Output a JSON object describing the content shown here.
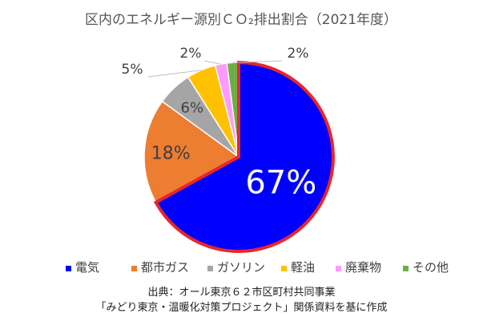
{
  "chart_data": {
    "type": "pie",
    "title": "区内のエネルギー源別ＣＯ₂排出割合（2021年度）",
    "slices": [
      {
        "label": "電気",
        "value": 67,
        "display": "67%",
        "color": "#0000FF"
      },
      {
        "label": "都市ガス",
        "value": 18,
        "display": "18%",
        "color": "#ED7D31"
      },
      {
        "label": "ガソリン",
        "value": 6,
        "display": "6%",
        "color": "#A5A5A5"
      },
      {
        "label": "軽油",
        "value": 5,
        "display": "5%",
        "color": "#FFC000"
      },
      {
        "label": "廃棄物",
        "value": 2,
        "display": "2%",
        "color": "#FF99FF"
      },
      {
        "label": "その他",
        "value": 2,
        "display": "2%",
        "color": "#70AD47"
      }
    ],
    "legend_position": "bottom",
    "highlighted_slice": "電気",
    "highlight_color": "#E8262B"
  },
  "source": {
    "line1": "出典：オール東京６２市区町村共同事業",
    "line2": "「みどり東京・温暖化対策プロジェクト」関係資料を基に作成"
  }
}
